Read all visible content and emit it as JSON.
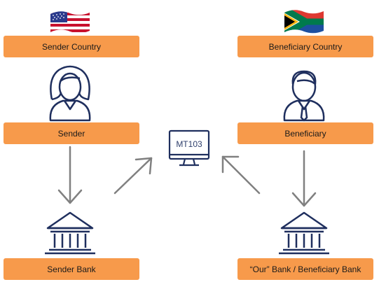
{
  "nodes": {
    "sender_country": "Sender Country",
    "beneficiary_country": "Beneficiary Country",
    "sender": "Sender",
    "beneficiary": "Beneficiary",
    "sender_bank": "Sender Bank",
    "beneficiary_bank": "“Our” Bank /  Beneficiary Bank"
  },
  "center": {
    "message_type": "MT103"
  },
  "icons": {
    "sender_flag": "us-flag-icon",
    "beneficiary_flag": "south-africa-flag-icon",
    "sender_person": "woman-icon",
    "beneficiary_person": "man-icon",
    "sender_bank": "bank-building-icon",
    "beneficiary_bank": "bank-building-icon",
    "computer": "computer-monitor-icon"
  },
  "colors": {
    "label_fill": "#f79a4b",
    "icon_stroke": "#1f2f5e",
    "arrow": "#808080"
  }
}
